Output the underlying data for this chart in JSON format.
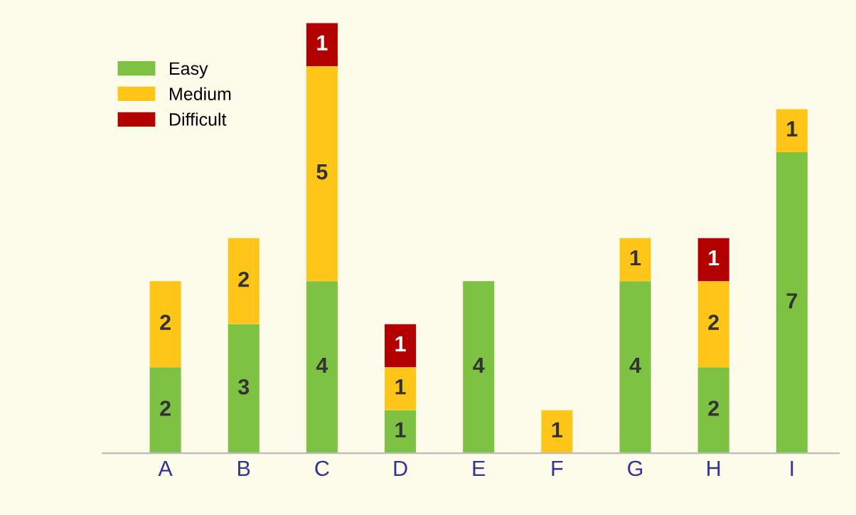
{
  "chart_data": {
    "type": "bar",
    "stacked": true,
    "categories": [
      "A",
      "B",
      "C",
      "D",
      "E",
      "F",
      "G",
      "H",
      "I"
    ],
    "series": [
      {
        "name": "Easy",
        "color": "#7dc242",
        "values": [
          2,
          3,
          4,
          1,
          4,
          null,
          4,
          2,
          7
        ]
      },
      {
        "name": "Medium",
        "color": "#ffc619",
        "values": [
          2,
          2,
          5,
          1,
          null,
          1,
          1,
          2,
          1
        ]
      },
      {
        "name": "Difficult",
        "color": "#b30000",
        "values": [
          null,
          null,
          1,
          1,
          null,
          null,
          null,
          1,
          null
        ]
      }
    ],
    "data_labels": true,
    "legend": "top left",
    "grid": false
  }
}
